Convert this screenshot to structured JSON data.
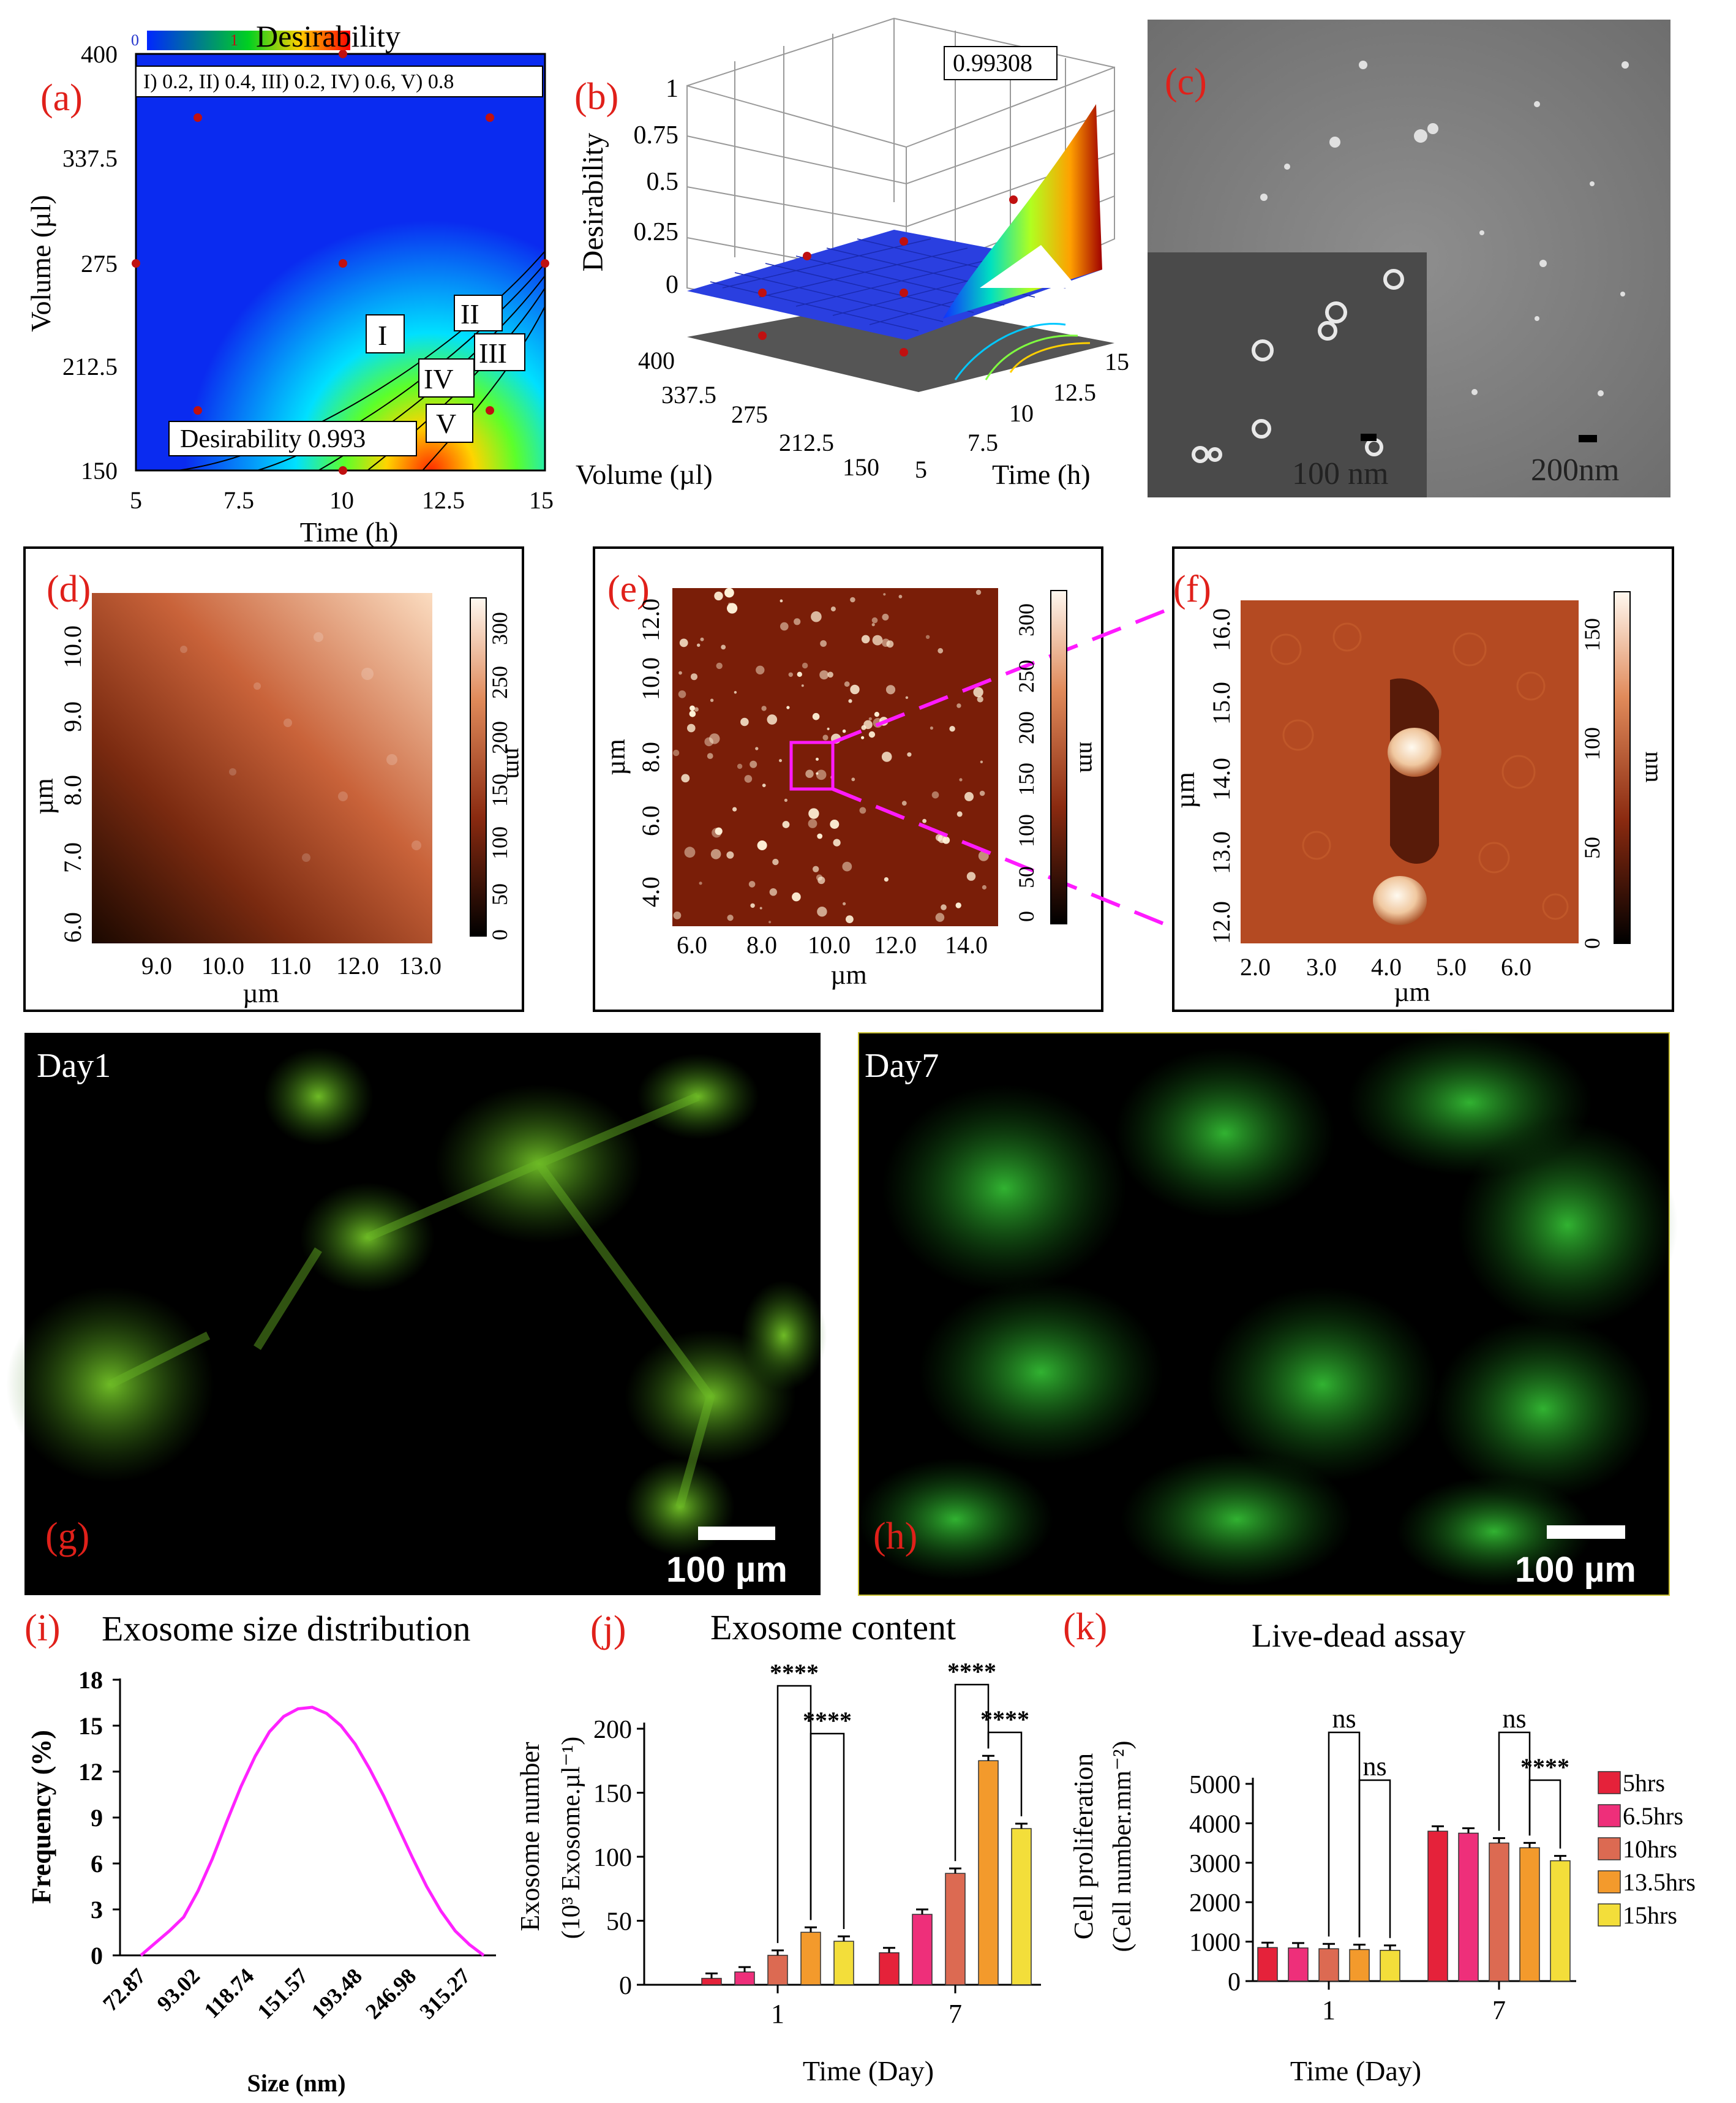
{
  "colors": {
    "panel_label": "#e0201a",
    "magenta": "#ff1aff",
    "blue_field": "#0a2bf0",
    "green_cells": "#37d03a"
  },
  "panel_a": {
    "label": "(a)",
    "colorbar_min": "0",
    "colorbar_max": "1",
    "colorbar_title": "Desirability",
    "legend": "I) 0.2, II) 0.4, III) 0.2, IV) 0.6, V) 0.8",
    "contour_labels": [
      "I",
      "II",
      "III",
      "IV",
      "V"
    ],
    "annotation": "Desirability 0.993",
    "ylabel": "Volume (µl)",
    "xlabel": "Time (h)",
    "yticks": [
      "400",
      "337.5",
      "275",
      "212.5",
      "150"
    ],
    "xticks": [
      "5",
      "7.5",
      "10",
      "12.5",
      "15"
    ]
  },
  "panel_b": {
    "label": "(b)",
    "peak_label": "0.99308",
    "zlabel": "Desirability",
    "zticks": [
      "1",
      "0.75",
      "0.5",
      "0.25",
      "0"
    ],
    "volume_ticks": [
      "400",
      "337.5",
      "275",
      "212.5",
      "150"
    ],
    "time_ticks": [
      "5",
      "7.5",
      "10",
      "12.5",
      "15"
    ],
    "volume_label": "Volume (µl)",
    "time_label": "Time (h)"
  },
  "panel_c": {
    "label": "(c)",
    "scale_inset": "100 nm",
    "scale_main": "200nm"
  },
  "panel_d": {
    "label": "(d)",
    "yticks": [
      "10.0",
      "9.0",
      "8.0",
      "7.0",
      "6.0"
    ],
    "xticks": [
      "9.0",
      "10.0",
      "11.0",
      "12.0",
      "13.0"
    ],
    "xlabel": "µm",
    "ylabel": "µm",
    "cbar_ticks": [
      "300",
      "250",
      "200",
      "150",
      "100",
      "50",
      "0"
    ],
    "cbar_label": "nm"
  },
  "panel_e": {
    "label": "(e)",
    "yticks": [
      "12.0",
      "10.0",
      "8.0",
      "6.0",
      "4.0"
    ],
    "xticks": [
      "6.0",
      "8.0",
      "10.0",
      "12.0",
      "14.0"
    ],
    "xlabel": "µm",
    "ylabel": "µm",
    "cbar_ticks": [
      "300",
      "250",
      "200",
      "150",
      "100",
      "50",
      "0"
    ],
    "cbar_label": "nm"
  },
  "panel_f": {
    "label": "(f)",
    "yticks": [
      "16.0",
      "15.0",
      "14.0",
      "13.0",
      "12.0"
    ],
    "xticks": [
      "2.0",
      "3.0",
      "4.0",
      "5.0",
      "6.0"
    ],
    "xlabel": "µm",
    "ylabel": "µm",
    "cbar_ticks": [
      "150",
      "100",
      "50",
      "0"
    ],
    "cbar_label": "nm"
  },
  "panel_g": {
    "label": "(g)",
    "day": "Day1",
    "scale": "100 µm"
  },
  "panel_h": {
    "label": "(h)",
    "day": "Day7",
    "scale": "100 µm"
  },
  "chart_data": [
    {
      "id": "i",
      "type": "line",
      "label": "(i)",
      "title": "Exosome size distribution",
      "xlabel": "Size (nm)",
      "ylabel": "Frequency (%)",
      "x_tick_labels": [
        "72.87",
        "93.02",
        "118.74",
        "151.57",
        "193.48",
        "246.98",
        "315.27"
      ],
      "y_ticks": [
        "0",
        "3",
        "6",
        "9",
        "12",
        "15",
        "18"
      ],
      "ylim": [
        0,
        18
      ],
      "x": [
        0,
        1,
        2,
        3,
        4,
        5,
        6,
        7,
        8,
        9,
        10,
        11,
        12,
        13,
        14,
        15,
        16,
        17,
        18,
        19,
        20,
        21,
        22,
        23,
        24
      ],
      "y": [
        0,
        0.8,
        1.6,
        2.5,
        4.2,
        6.3,
        8.7,
        11.0,
        13.0,
        14.6,
        15.6,
        16.1,
        16.2,
        15.8,
        15.0,
        13.8,
        12.2,
        10.4,
        8.4,
        6.4,
        4.5,
        2.9,
        1.6,
        0.7,
        0
      ],
      "color": "#ff22ff"
    },
    {
      "id": "j",
      "type": "bar",
      "label": "(j)",
      "title": "Exosome content",
      "xlabel": "Time (Day)",
      "ylabel_line1": "Exosome number",
      "ylabel_line2": "(10³ Exosome.µl⁻¹)",
      "categories": [
        "1",
        "7"
      ],
      "y_ticks": [
        "0",
        "50",
        "100",
        "150",
        "200"
      ],
      "ylim": [
        0,
        200
      ],
      "series": [
        {
          "name": "5hrs",
          "values": [
            5,
            25
          ],
          "color": "#e5223a"
        },
        {
          "name": "6.5hrs",
          "values": [
            10,
            55
          ],
          "color": "#ee2f7a"
        },
        {
          "name": "10hrs",
          "values": [
            23,
            87
          ],
          "color": "#dc6a52"
        },
        {
          "name": "13.5hrs",
          "values": [
            41,
            175
          ],
          "color": "#f39a2c"
        },
        {
          "name": "15hrs",
          "values": [
            34,
            122
          ],
          "color": "#f3de3a"
        }
      ],
      "significance": [
        "****",
        "****",
        "****",
        "****"
      ]
    },
    {
      "id": "k",
      "type": "bar",
      "label": "(k)",
      "title": "Live-dead assay",
      "xlabel": "Time (Day)",
      "ylabel_line1": "Cell proliferation",
      "ylabel_line2": "(Cell number.mm⁻²)",
      "categories": [
        "1",
        "7"
      ],
      "y_ticks": [
        "0",
        "1000",
        "2000",
        "3000",
        "4000",
        "5000"
      ],
      "ylim": [
        0,
        5000
      ],
      "series": [
        {
          "name": "5hrs",
          "values": [
            850,
            3800
          ],
          "color": "#e5223a"
        },
        {
          "name": "6.5hrs",
          "values": [
            840,
            3750
          ],
          "color": "#ee2f7a"
        },
        {
          "name": "10hrs",
          "values": [
            820,
            3500
          ],
          "color": "#dc6a52"
        },
        {
          "name": "13.5hrs",
          "values": [
            800,
            3380
          ],
          "color": "#f39a2c"
        },
        {
          "name": "15hrs",
          "values": [
            780,
            3050
          ],
          "color": "#f3de3a"
        }
      ],
      "significance": [
        "ns",
        "ns",
        "ns",
        "****"
      ]
    }
  ]
}
